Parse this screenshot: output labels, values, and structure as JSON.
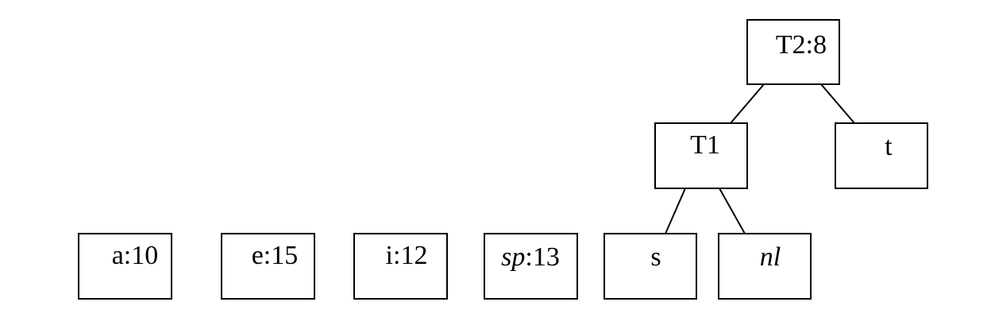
{
  "nodes": [
    {
      "id": "t2",
      "label": "T2:8",
      "italic_part": ""
    },
    {
      "id": "t1",
      "label": "T1",
      "italic_part": ""
    },
    {
      "id": "t",
      "label": "t",
      "italic_part": ""
    },
    {
      "id": "a",
      "label": "a:10",
      "italic_part": ""
    },
    {
      "id": "e",
      "label": "e:15",
      "italic_part": ""
    },
    {
      "id": "i",
      "label": "i:12",
      "italic_part": ""
    },
    {
      "id": "sp",
      "label": ":13",
      "italic_part": "sp"
    },
    {
      "id": "s",
      "label": "s",
      "italic_part": ""
    },
    {
      "id": "nl",
      "label": "",
      "italic_part": "nl"
    }
  ],
  "edges": [
    {
      "from": "t2",
      "to": "t1"
    },
    {
      "from": "t2",
      "to": "t"
    },
    {
      "from": "t1",
      "to": "s"
    },
    {
      "from": "t1",
      "to": "nl"
    }
  ]
}
